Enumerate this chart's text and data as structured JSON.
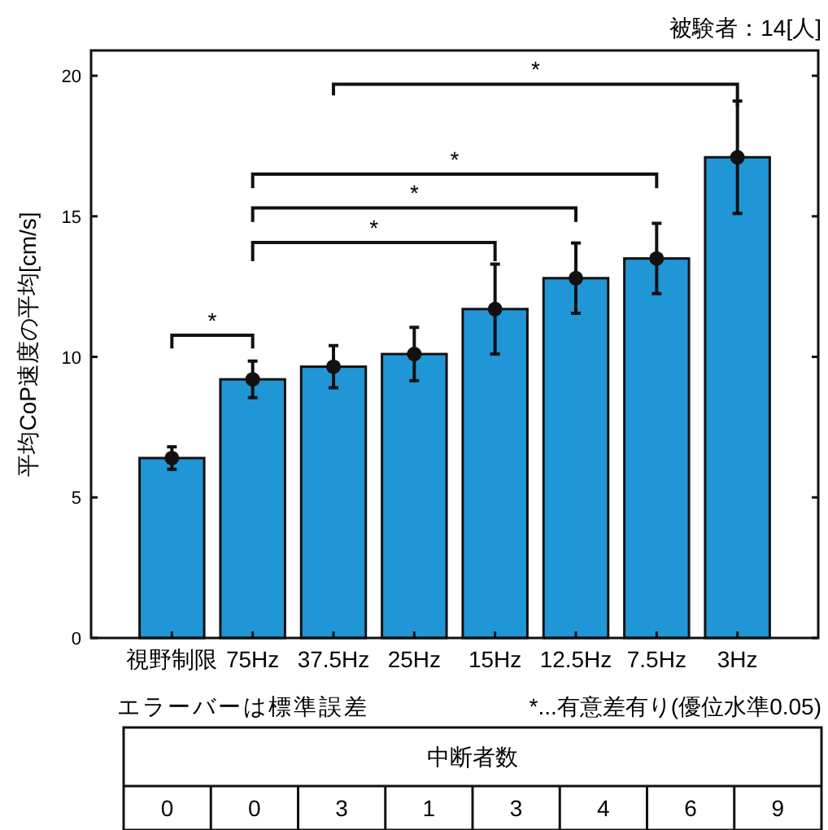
{
  "chart_data": [
    {
      "type": "bar",
      "ylabel": "平均CoP速度の平均[cm/s]",
      "categories": [
        "視野制限",
        "75Hz",
        "37.5Hz",
        "25Hz",
        "15Hz",
        "12.5Hz",
        "7.5Hz",
        "3Hz"
      ],
      "series": [
        {
          "color": "#2196d6",
          "values": [
            6.4,
            9.2,
            9.65,
            10.1,
            11.7,
            12.8,
            13.5,
            17.1
          ]
        },
        {
          "type": "scatter",
          "color": "#111111",
          "x": [
            "視野制限",
            "75Hz",
            "37.5Hz",
            "25Hz",
            "15Hz",
            "12.5Hz",
            "7.5Hz",
            "3Hz"
          ],
          "values": [
            6.4,
            9.2,
            9.65,
            10.1,
            11.7,
            12.8,
            13.5,
            17.1
          ],
          "errors": [
            0.4,
            0.65,
            0.75,
            0.95,
            1.6,
            1.25,
            1.25,
            2.0
          ],
          "marker": "circle"
        }
      ],
      "ylim": [
        0,
        20.9
      ],
      "yticks": [
        0,
        5,
        10,
        15,
        20
      ],
      "grid": false,
      "annotations": [
        "被験者：14[人]",
        "エラーバーは標準誤差",
        "*...有意差有り(優位水準0.05)",
        "*",
        "*",
        "*",
        "*",
        "*"
      ]
    },
    {
      "type": "other",
      "title": "中断者数",
      "categories": [
        null,
        null,
        null,
        null,
        null,
        null,
        null,
        null
      ],
      "values": [
        0,
        0,
        3,
        1,
        3,
        4,
        6,
        9
      ],
      "data_labels": true
    }
  ]
}
